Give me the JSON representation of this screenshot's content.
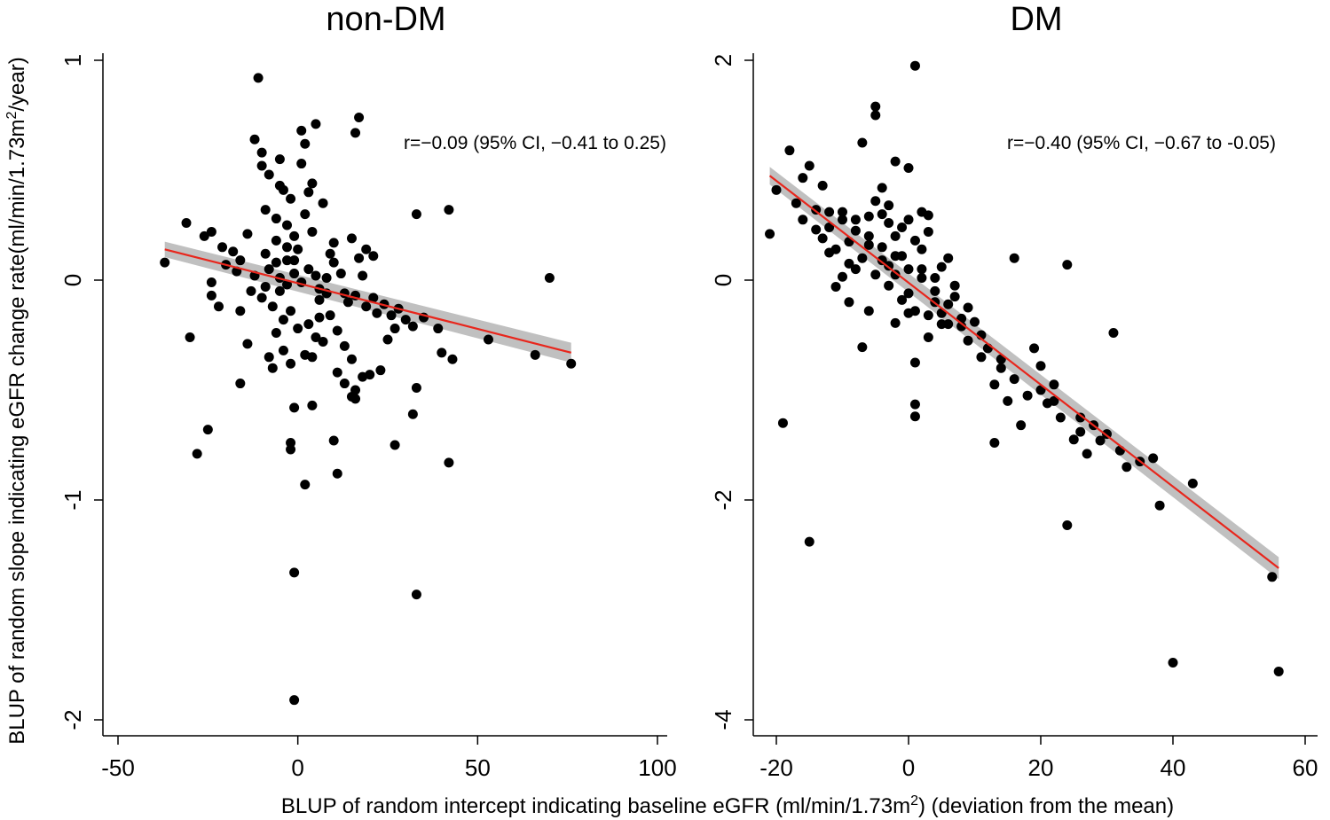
{
  "figure": {
    "ylabel_main": "BLUP of random slope indicating eGFR change rate(ml/min/1.73m",
    "ylabel_sup": "2",
    "ylabel_tail": "/year)",
    "xlabel_main": "BLUP of random intercept indicating baseline eGFR (ml/min/1.73m",
    "xlabel_sup": "2",
    "xlabel_tail": ")  (deviation from the mean)"
  },
  "colors": {
    "points": "#000000",
    "fit_line": "#e8261c",
    "ci_band": "#b5b5b5"
  },
  "chart_data": [
    {
      "type": "scatter",
      "title": "non-DM",
      "annotation": "r=−0.09 (95% CI, −0.41 to 0.25)",
      "xlim": [
        -55,
        105
      ],
      "ylim": [
        -2.05,
        1.05
      ],
      "xticks": [
        -50,
        0,
        50,
        100
      ],
      "xtick_labels": [
        "-50",
        "0",
        "50",
        "100"
      ],
      "yticks": [
        1,
        0,
        -1,
        -2
      ],
      "ytick_labels": [
        "1",
        "0",
        "-1",
        "-2"
      ],
      "fit": {
        "x": [
          -37,
          76
        ],
        "y": [
          0.14,
          -0.33
        ],
        "ci_halfwidth": [
          0.035,
          0.045
        ]
      },
      "points": [
        [
          -11,
          0.92
        ],
        [
          -37,
          0.08
        ],
        [
          -31,
          0.26
        ],
        [
          -30,
          -0.26
        ],
        [
          -28,
          -0.79
        ],
        [
          -25,
          -0.68
        ],
        [
          -24,
          -0.01
        ],
        [
          -24,
          -0.07
        ],
        [
          -24,
          0.22
        ],
        [
          -22,
          -0.12
        ],
        [
          -16,
          -0.47
        ],
        [
          -16,
          -0.14
        ],
        [
          -14,
          -0.29
        ],
        [
          -12,
          0.64
        ],
        [
          -10,
          0.58
        ],
        [
          -10,
          0.52
        ],
        [
          -8,
          0.48
        ],
        [
          -5,
          0.55
        ],
        [
          -4,
          0.41
        ],
        [
          -2,
          0.37
        ],
        [
          1,
          0.68
        ],
        [
          1,
          0.53
        ],
        [
          2,
          0.62
        ],
        [
          5,
          0.71
        ],
        [
          4,
          0.44
        ],
        [
          -9,
          0.32
        ],
        [
          -6,
          0.28
        ],
        [
          2,
          0.3
        ],
        [
          4,
          0.22
        ],
        [
          -6,
          0.18
        ],
        [
          -3,
          0.15
        ],
        [
          -14,
          0.21
        ],
        [
          -21,
          0.15
        ],
        [
          -18,
          0.13
        ],
        [
          -26,
          0.2
        ],
        [
          -20,
          0.07
        ],
        [
          -17,
          0.04
        ],
        [
          -12,
          0.02
        ],
        [
          -8,
          0.05
        ],
        [
          -5,
          0.01
        ],
        [
          -3,
          -0.02
        ],
        [
          -1,
          0.03
        ],
        [
          1,
          -0.01
        ],
        [
          3,
          0.05
        ],
        [
          5,
          0.02
        ],
        [
          6,
          -0.04
        ],
        [
          8,
          0.01
        ],
        [
          10,
          0.08
        ],
        [
          12,
          0.03
        ],
        [
          13,
          -0.06
        ],
        [
          14,
          -0.1
        ],
        [
          16,
          -0.07
        ],
        [
          18,
          0.02
        ],
        [
          19,
          -0.12
        ],
        [
          21,
          -0.08
        ],
        [
          22,
          -0.15
        ],
        [
          24,
          -0.11
        ],
        [
          26,
          -0.16
        ],
        [
          28,
          -0.13
        ],
        [
          30,
          -0.18
        ],
        [
          32,
          -0.21
        ],
        [
          -10,
          -0.08
        ],
        [
          -7,
          -0.12
        ],
        [
          -4,
          -0.18
        ],
        [
          -2,
          -0.14
        ],
        [
          0,
          -0.22
        ],
        [
          3,
          -0.2
        ],
        [
          5,
          -0.26
        ],
        [
          7,
          -0.28
        ],
        [
          9,
          -0.16
        ],
        [
          11,
          -0.23
        ],
        [
          13,
          -0.3
        ],
        [
          15,
          -0.36
        ],
        [
          -6,
          -0.24
        ],
        [
          -8,
          -0.35
        ],
        [
          -4,
          -0.32
        ],
        [
          -7,
          -0.4
        ],
        [
          -2,
          -0.38
        ],
        [
          2,
          -0.34
        ],
        [
          4,
          -0.35
        ],
        [
          11,
          -0.42
        ],
        [
          13,
          -0.47
        ],
        [
          16,
          -0.5
        ],
        [
          18,
          -0.44
        ],
        [
          20,
          -0.43
        ],
        [
          23,
          -0.41
        ],
        [
          15,
          -0.53
        ],
        [
          16,
          -0.54
        ],
        [
          -1,
          -0.58
        ],
        [
          4,
          -0.57
        ],
        [
          -2,
          -0.74
        ],
        [
          -2,
          -0.77
        ],
        [
          10,
          -0.73
        ],
        [
          2,
          -0.93
        ],
        [
          11,
          -0.88
        ],
        [
          27,
          -0.75
        ],
        [
          32,
          -0.61
        ],
        [
          33,
          -0.49
        ],
        [
          42,
          -0.83
        ],
        [
          33,
          0.3
        ],
        [
          42,
          0.32
        ],
        [
          39,
          -0.22
        ],
        [
          40,
          -0.33
        ],
        [
          43,
          -0.36
        ],
        [
          53,
          -0.27
        ],
        [
          66,
          -0.34
        ],
        [
          70,
          0.01
        ],
        [
          76,
          -0.38
        ],
        [
          -1,
          -1.33
        ],
        [
          33,
          -1.43
        ],
        [
          -1,
          -1.91
        ],
        [
          16,
          0.67
        ],
        [
          17,
          0.74
        ],
        [
          -5,
          0.43
        ],
        [
          3,
          0.4
        ],
        [
          7,
          0.35
        ],
        [
          -1,
          0.09
        ],
        [
          9,
          0.12
        ],
        [
          -3,
          0.09
        ],
        [
          -9,
          -0.03
        ],
        [
          -13,
          -0.05
        ],
        [
          -16,
          0.09
        ],
        [
          6,
          -0.09
        ],
        [
          8,
          -0.06
        ],
        [
          10,
          0.17
        ],
        [
          15,
          0.19
        ],
        [
          17,
          0.1
        ],
        [
          19,
          0.14
        ],
        [
          21,
          0.11
        ],
        [
          -1,
          0.2
        ],
        [
          0,
          0.14
        ],
        [
          6,
          -0.17
        ],
        [
          -5,
          -0.05
        ],
        [
          -6,
          0.08
        ],
        [
          -9,
          0.12
        ],
        [
          -3,
          0.25
        ],
        [
          25,
          -0.27
        ],
        [
          27,
          -0.22
        ],
        [
          35,
          -0.17
        ]
      ]
    },
    {
      "type": "scatter",
      "title": "DM",
      "annotation": "r=−0.40 (95% CI, −0.67 to -0.05)",
      "xlim": [
        -23,
        61
      ],
      "ylim": [
        -4.1,
        2.1
      ],
      "xticks": [
        -20,
        0,
        20,
        40,
        60
      ],
      "xtick_labels": [
        "-20",
        "0",
        "20",
        "40",
        "60"
      ],
      "yticks": [
        2,
        0,
        -2,
        -4
      ],
      "ytick_labels": [
        "2",
        "0",
        "-2",
        "-4"
      ],
      "fit": {
        "x": [
          -21,
          56
        ],
        "y": [
          0.95,
          -2.62
        ],
        "ci_halfwidth": [
          0.08,
          0.1
        ]
      },
      "points": [
        [
          -21,
          0.42
        ],
        [
          -19,
          -1.3
        ],
        [
          -20,
          0.82
        ],
        [
          -18,
          1.18
        ],
        [
          -17,
          0.7
        ],
        [
          -16,
          0.93
        ],
        [
          -15,
          1.04
        ],
        [
          -15,
          -2.38
        ],
        [
          -14,
          0.64
        ],
        [
          -13,
          0.86
        ],
        [
          -12,
          0.48
        ],
        [
          -11,
          -0.06
        ],
        [
          -10,
          0.62
        ],
        [
          -9,
          -0.2
        ],
        [
          -8,
          0.55
        ],
        [
          -7,
          1.25
        ],
        [
          -7,
          -0.61
        ],
        [
          -6,
          0.32
        ],
        [
          -6,
          -0.28
        ],
        [
          -5,
          1.58
        ],
        [
          -5,
          1.5
        ],
        [
          -4,
          0.84
        ],
        [
          -4,
          0.6
        ],
        [
          -3,
          0.52
        ],
        [
          -3,
          0.13
        ],
        [
          -2,
          1.08
        ],
        [
          -2,
          0.4
        ],
        [
          -2,
          -0.39
        ],
        [
          -1,
          0.22
        ],
        [
          0,
          1.02
        ],
        [
          0,
          0.55
        ],
        [
          0,
          -0.12
        ],
        [
          1,
          1.95
        ],
        [
          1,
          0.36
        ],
        [
          1,
          -0.75
        ],
        [
          1,
          -1.13
        ],
        [
          1,
          -1.24
        ],
        [
          2,
          0.62
        ],
        [
          2,
          0.1
        ],
        [
          3,
          0.59
        ],
        [
          3,
          -0.52
        ],
        [
          4,
          -0.2
        ],
        [
          5,
          -0.3
        ],
        [
          6,
          0.2
        ],
        [
          6,
          -0.4
        ],
        [
          7,
          -0.15
        ],
        [
          8,
          -0.42
        ],
        [
          9,
          -0.25
        ],
        [
          10,
          -0.38
        ],
        [
          11,
          -0.5
        ],
        [
          12,
          -0.62
        ],
        [
          13,
          -0.95
        ],
        [
          13,
          -1.48
        ],
        [
          14,
          -0.72
        ],
        [
          15,
          -1.1
        ],
        [
          16,
          -0.9
        ],
        [
          17,
          -1.32
        ],
        [
          18,
          -1.05
        ],
        [
          19,
          -0.62
        ],
        [
          20,
          -0.78
        ],
        [
          21,
          -1.12
        ],
        [
          22,
          -0.95
        ],
        [
          23,
          -1.25
        ],
        [
          24,
          0.14
        ],
        [
          24,
          -2.23
        ],
        [
          25,
          -1.45
        ],
        [
          26,
          -1.25
        ],
        [
          27,
          -1.58
        ],
        [
          28,
          -1.32
        ],
        [
          30,
          -1.4
        ],
        [
          31,
          -0.48
        ],
        [
          32,
          -1.55
        ],
        [
          33,
          -1.7
        ],
        [
          35,
          -1.65
        ],
        [
          37,
          -1.62
        ],
        [
          38,
          -2.05
        ],
        [
          40,
          -3.48
        ],
        [
          43,
          -1.85
        ],
        [
          55,
          -2.7
        ],
        [
          56,
          -3.56
        ],
        [
          16,
          0.2
        ],
        [
          -12,
          0.62
        ],
        [
          -10,
          0.55
        ],
        [
          -8,
          0.45
        ],
        [
          -6,
          0.4
        ],
        [
          -4,
          0.3
        ],
        [
          -2,
          0.22
        ],
        [
          0,
          0.1
        ],
        [
          2,
          0.02
        ],
        [
          4,
          -0.1
        ],
        [
          6,
          -0.22
        ],
        [
          8,
          -0.35
        ],
        [
          -9,
          0.35
        ],
        [
          -7,
          0.2
        ],
        [
          -5,
          0.05
        ],
        [
          -3,
          -0.05
        ],
        [
          -1,
          -0.18
        ],
        [
          1,
          -0.28
        ],
        [
          3,
          -0.32
        ],
        [
          5,
          -0.4
        ],
        [
          -11,
          0.28
        ],
        [
          -14,
          0.46
        ],
        [
          -16,
          0.55
        ],
        [
          -13,
          0.38
        ],
        [
          3,
          0.44
        ],
        [
          2,
          0.28
        ],
        [
          0,
          -0.3
        ],
        [
          -1,
          0.48
        ],
        [
          -3,
          0.68
        ],
        [
          -5,
          0.72
        ],
        [
          -9,
          0.15
        ],
        [
          -6,
          0.58
        ],
        [
          -8,
          0.1
        ],
        [
          -4,
          0.18
        ],
        [
          -2,
          0.05
        ],
        [
          4,
          0.02
        ],
        [
          5,
          0.12
        ],
        [
          7,
          -0.05
        ],
        [
          9,
          -0.55
        ],
        [
          -10,
          0.03
        ],
        [
          -12,
          0.25
        ],
        [
          11,
          -0.7
        ],
        [
          14,
          -0.8
        ],
        [
          20,
          -1.0
        ],
        [
          22,
          -1.1
        ],
        [
          26,
          -1.38
        ],
        [
          29,
          -1.46
        ]
      ]
    }
  ]
}
